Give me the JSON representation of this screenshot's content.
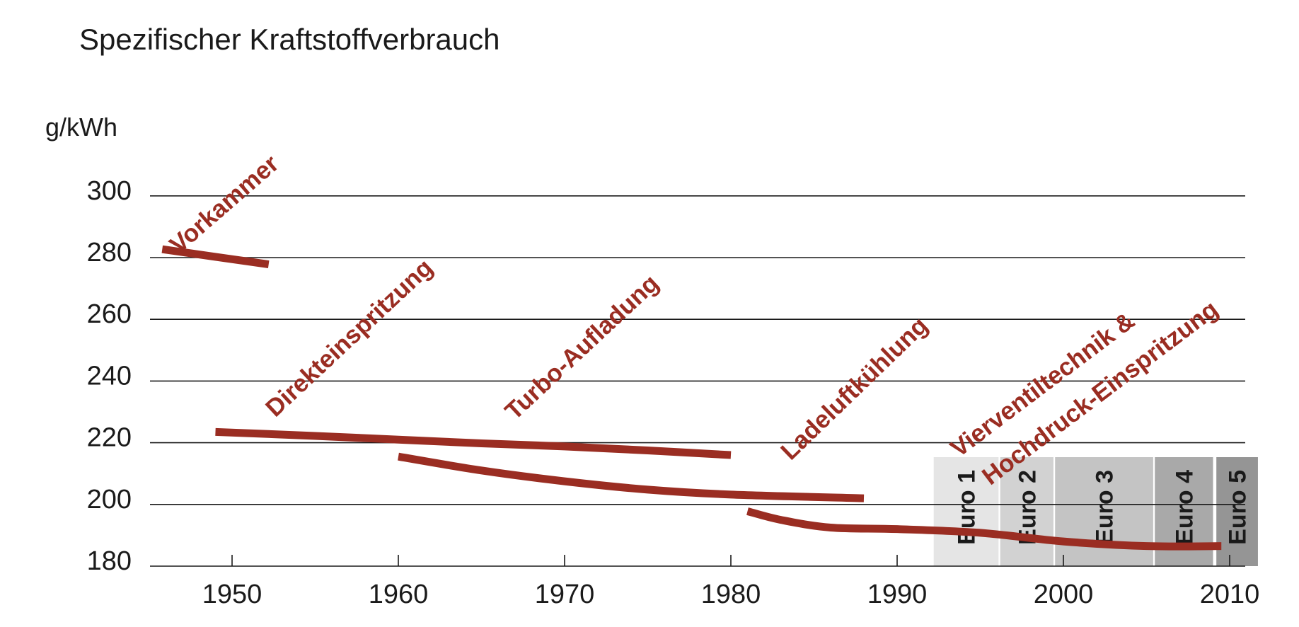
{
  "chart_data": {
    "type": "line",
    "title": "Spezifischer Kraftstoffverbrauch",
    "ylabel": "g/kWh",
    "xlabel": "",
    "xlim": [
      1945,
      2012
    ],
    "ylim": [
      180,
      300
    ],
    "xticks": [
      1950,
      1960,
      1970,
      1980,
      1990,
      2000,
      2010
    ],
    "yticks": [
      180,
      200,
      220,
      240,
      260,
      280,
      300
    ],
    "grid": "horizontal",
    "colors": {
      "series": "#9a2d22"
    },
    "bands": [
      {
        "label": "Euro 1",
        "start": 1992.2,
        "end": 1996.1,
        "color": "#e5e5e5"
      },
      {
        "label": "Euro 2",
        "start": 1996.2,
        "end": 1999.4,
        "color": "#d2d2d2"
      },
      {
        "label": "Euro 3",
        "start": 1999.5,
        "end": 2005.4,
        "color": "#c4c4c4"
      },
      {
        "label": "Euro 4",
        "start": 2005.5,
        "end": 2009.0,
        "color": "#a9a9a9"
      },
      {
        "label": "Euro 5",
        "start": 2009.2,
        "end": 2011.7,
        "color": "#959595"
      }
    ],
    "series": [
      {
        "x": [
          1945.8,
          1952.2
        ],
        "y": [
          282.7,
          277.8
        ]
      },
      {
        "x": [
          1949,
          1955,
          1960,
          1965,
          1970,
          1975,
          1980
        ],
        "y": [
          223.5,
          222.2,
          221.0,
          219.8,
          218.8,
          217.5,
          216.0
        ]
      },
      {
        "x": [
          1960,
          1965,
          1970,
          1975,
          1980,
          1988
        ],
        "y": [
          215.5,
          211.0,
          207.5,
          204.8,
          203.2,
          202.0
        ]
      },
      {
        "x": [
          1981,
          1983,
          1986,
          1990,
          1995,
          2000,
          2005,
          2009.5
        ],
        "y": [
          197.8,
          195.0,
          192.5,
          192.0,
          190.8,
          188.0,
          186.5,
          186.5
        ]
      }
    ],
    "annotations": [
      {
        "text": "Vorkammer",
        "x": 1946.8,
        "y": 281,
        "angle": -41
      },
      {
        "text": "Direkteinspritzung",
        "x": 1952.6,
        "y": 228,
        "angle": -43
      },
      {
        "text": "Turbo-Aufladung",
        "x": 1967.0,
        "y": 227,
        "angle": -43
      },
      {
        "text": "Ladeluftkühlung",
        "x": 1983.6,
        "y": 214,
        "angle": -44
      },
      {
        "text": "Vierventiltechnik &",
        "x": 1993.7,
        "y": 215,
        "angle": -37
      },
      {
        "text": "Hochdruck-Einspritzung",
        "x": 1995.6,
        "y": 206,
        "angle": -37
      }
    ]
  }
}
